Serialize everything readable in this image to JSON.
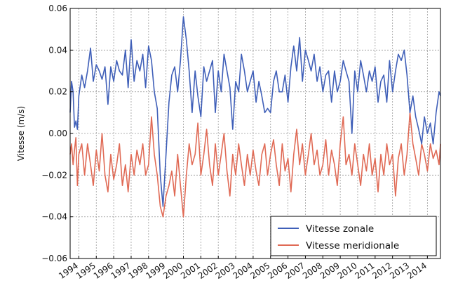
{
  "chart_data": {
    "type": "line",
    "title": "",
    "xlabel": "",
    "ylabel": "Vitesse (m/s)",
    "grid": true,
    "legend_position": "bottom-right",
    "xlim": [
      1993.5,
      2014.75
    ],
    "ylim": [
      -0.06,
      0.06
    ],
    "x_ticks": [
      "1994",
      "1995",
      "1996",
      "1997",
      "1998",
      "1999",
      "2000",
      "2001",
      "2002",
      "2003",
      "2004",
      "2005",
      "2006",
      "2007",
      "2008",
      "2009",
      "2010",
      "2011",
      "2012",
      "2013",
      "2014"
    ],
    "y_ticks": [
      "−0.06",
      "−0.04",
      "−0.02",
      "0.00",
      "0.02",
      "0.04",
      "0.06"
    ],
    "series": [
      {
        "name": "Vitesse zonale",
        "color": "#3f5fb8",
        "x": [
          1993.5,
          1993.58,
          1993.67,
          1993.75,
          1993.83,
          1993.92,
          1994.0,
          1994.17,
          1994.33,
          1994.5,
          1994.67,
          1994.83,
          1995.0,
          1995.17,
          1995.33,
          1995.5,
          1995.67,
          1995.83,
          1996.0,
          1996.17,
          1996.33,
          1996.5,
          1996.67,
          1996.83,
          1997.0,
          1997.17,
          1997.33,
          1997.5,
          1997.67,
          1997.83,
          1998.0,
          1998.17,
          1998.33,
          1998.5,
          1998.67,
          1998.83,
          1999.0,
          1999.17,
          1999.33,
          1999.5,
          1999.67,
          1999.83,
          2000.0,
          2000.17,
          2000.33,
          2000.5,
          2000.67,
          2000.83,
          2001.0,
          2001.17,
          2001.33,
          2001.5,
          2001.67,
          2001.83,
          2002.0,
          2002.17,
          2002.33,
          2002.5,
          2002.67,
          2002.83,
          2003.0,
          2003.17,
          2003.33,
          2003.5,
          2003.67,
          2003.83,
          2004.0,
          2004.17,
          2004.33,
          2004.5,
          2004.67,
          2004.83,
          2005.0,
          2005.17,
          2005.33,
          2005.5,
          2005.67,
          2005.83,
          2006.0,
          2006.17,
          2006.33,
          2006.5,
          2006.67,
          2006.83,
          2007.0,
          2007.17,
          2007.33,
          2007.5,
          2007.67,
          2007.83,
          2008.0,
          2008.17,
          2008.33,
          2008.5,
          2008.67,
          2008.83,
          2009.0,
          2009.17,
          2009.33,
          2009.5,
          2009.67,
          2009.83,
          2010.0,
          2010.17,
          2010.33,
          2010.5,
          2010.67,
          2010.83,
          2011.0,
          2011.17,
          2011.33,
          2011.5,
          2011.67,
          2011.83,
          2012.0,
          2012.17,
          2012.33,
          2012.5,
          2012.67,
          2012.83,
          2013.0,
          2013.17,
          2013.33,
          2013.5,
          2013.67,
          2013.83,
          2014.0,
          2014.17,
          2014.33,
          2014.5,
          2014.67,
          2014.75
        ],
        "y": [
          0.01,
          0.025,
          0.02,
          0.003,
          0.006,
          0.002,
          0.018,
          0.028,
          0.022,
          0.03,
          0.041,
          0.025,
          0.033,
          0.03,
          0.026,
          0.032,
          0.014,
          0.032,
          0.025,
          0.035,
          0.03,
          0.028,
          0.04,
          0.022,
          0.045,
          0.025,
          0.035,
          0.03,
          0.038,
          0.022,
          0.042,
          0.035,
          0.02,
          0.012,
          -0.02,
          -0.035,
          -0.01,
          0.015,
          0.028,
          0.032,
          0.02,
          0.035,
          0.056,
          0.045,
          0.03,
          0.01,
          0.03,
          0.018,
          0.008,
          0.032,
          0.025,
          0.03,
          0.035,
          0.01,
          0.03,
          0.02,
          0.038,
          0.03,
          0.022,
          0.002,
          0.025,
          0.02,
          0.038,
          0.03,
          0.02,
          0.025,
          0.03,
          0.015,
          0.025,
          0.018,
          0.01,
          0.012,
          0.01,
          0.025,
          0.03,
          0.02,
          0.02,
          0.028,
          0.015,
          0.032,
          0.042,
          0.03,
          0.046,
          0.025,
          0.04,
          0.035,
          0.03,
          0.038,
          0.025,
          0.032,
          0.02,
          0.028,
          0.03,
          0.015,
          0.03,
          0.02,
          0.025,
          0.035,
          0.03,
          0.025,
          0.0,
          0.03,
          0.02,
          0.035,
          0.028,
          0.02,
          0.03,
          0.025,
          0.032,
          0.015,
          0.025,
          0.028,
          0.015,
          0.035,
          0.02,
          0.03,
          0.038,
          0.035,
          0.04,
          0.028,
          0.01,
          0.018,
          0.008,
          0.002,
          -0.005,
          0.008,
          0.0,
          0.005,
          -0.005,
          0.01,
          0.02,
          0.018
        ]
      },
      {
        "name": "Vitesse meridionale",
        "color": "#e06a55",
        "x": [
          1993.5,
          1993.58,
          1993.67,
          1993.75,
          1993.83,
          1993.92,
          1994.0,
          1994.17,
          1994.33,
          1994.5,
          1994.67,
          1994.83,
          1995.0,
          1995.17,
          1995.33,
          1995.5,
          1995.67,
          1995.83,
          1996.0,
          1996.17,
          1996.33,
          1996.5,
          1996.67,
          1996.83,
          1997.0,
          1997.17,
          1997.33,
          1997.5,
          1997.67,
          1997.83,
          1998.0,
          1998.17,
          1998.33,
          1998.5,
          1998.67,
          1998.83,
          1999.0,
          1999.17,
          1999.33,
          1999.5,
          1999.67,
          1999.83,
          2000.0,
          2000.17,
          2000.33,
          2000.5,
          2000.67,
          2000.83,
          2001.0,
          2001.17,
          2001.33,
          2001.5,
          2001.67,
          2001.83,
          2002.0,
          2002.17,
          2002.33,
          2002.5,
          2002.67,
          2002.83,
          2003.0,
          2003.17,
          2003.33,
          2003.5,
          2003.67,
          2003.83,
          2004.0,
          2004.17,
          2004.33,
          2004.5,
          2004.67,
          2004.83,
          2005.0,
          2005.17,
          2005.33,
          2005.5,
          2005.67,
          2005.83,
          2006.0,
          2006.17,
          2006.33,
          2006.5,
          2006.67,
          2006.83,
          2007.0,
          2007.17,
          2007.33,
          2007.5,
          2007.67,
          2007.83,
          2008.0,
          2008.17,
          2008.33,
          2008.5,
          2008.67,
          2008.83,
          2009.0,
          2009.17,
          2009.33,
          2009.5,
          2009.67,
          2009.83,
          2010.0,
          2010.17,
          2010.33,
          2010.5,
          2010.67,
          2010.83,
          2011.0,
          2011.17,
          2011.33,
          2011.5,
          2011.67,
          2011.83,
          2012.0,
          2012.17,
          2012.33,
          2012.5,
          2012.67,
          2012.83,
          2013.0,
          2013.17,
          2013.33,
          2013.5,
          2013.67,
          2013.83,
          2014.0,
          2014.17,
          2014.33,
          2014.5,
          2014.67,
          2014.75
        ],
        "y": [
          -0.01,
          -0.005,
          -0.015,
          -0.008,
          -0.002,
          -0.025,
          -0.01,
          -0.005,
          -0.02,
          -0.005,
          -0.015,
          -0.025,
          -0.008,
          -0.018,
          0.0,
          -0.02,
          -0.028,
          -0.01,
          -0.022,
          -0.015,
          -0.005,
          -0.025,
          -0.015,
          -0.028,
          -0.01,
          -0.02,
          -0.008,
          -0.015,
          -0.005,
          -0.02,
          -0.015,
          0.008,
          -0.01,
          -0.02,
          -0.035,
          -0.04,
          -0.03,
          -0.025,
          -0.018,
          -0.03,
          -0.01,
          -0.025,
          -0.04,
          -0.02,
          -0.005,
          -0.015,
          -0.01,
          0.005,
          -0.02,
          -0.01,
          0.002,
          -0.015,
          -0.025,
          -0.005,
          -0.02,
          -0.01,
          0.0,
          -0.018,
          -0.03,
          -0.01,
          -0.02,
          -0.005,
          -0.015,
          -0.025,
          -0.01,
          -0.02,
          -0.008,
          -0.018,
          -0.025,
          -0.01,
          -0.005,
          -0.02,
          -0.01,
          -0.003,
          -0.015,
          -0.025,
          -0.005,
          -0.018,
          -0.012,
          -0.028,
          -0.01,
          0.002,
          -0.015,
          -0.005,
          -0.02,
          -0.01,
          0.0,
          -0.015,
          -0.008,
          -0.02,
          -0.015,
          -0.003,
          -0.02,
          -0.008,
          -0.015,
          -0.025,
          -0.005,
          0.008,
          -0.015,
          -0.01,
          -0.02,
          -0.005,
          -0.015,
          -0.025,
          -0.01,
          -0.018,
          -0.005,
          -0.02,
          -0.012,
          -0.028,
          -0.01,
          -0.02,
          -0.005,
          -0.015,
          -0.01,
          -0.03,
          -0.012,
          -0.005,
          -0.02,
          -0.01,
          0.01,
          -0.005,
          -0.012,
          -0.02,
          -0.005,
          -0.01,
          -0.018,
          -0.005,
          -0.012,
          -0.008,
          -0.015,
          -0.005
        ]
      }
    ]
  }
}
